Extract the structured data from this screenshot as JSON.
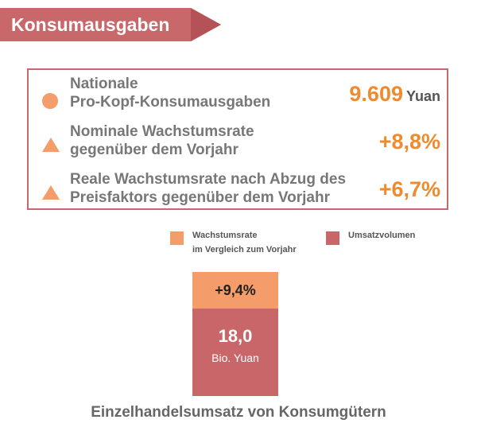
{
  "header": {
    "title": "Konsumausgaben"
  },
  "stats": [
    {
      "icon": "circle-icon",
      "label_line1": "Nationale",
      "label_line2": "Pro-Kopf-Konsumausgaben",
      "value": "9.609",
      "unit": "Yuan"
    },
    {
      "icon": "triangle-icon",
      "label_line1": "Nominale Wachstumsrate",
      "label_line2": "gegenüber dem Vorjahr",
      "value": "+8,8%",
      "unit": ""
    },
    {
      "icon": "triangle-icon",
      "label_line1": "Reale Wachstumsrate nach Abzug des",
      "label_line2": "Preisfaktors gegenüber dem Vorjahr",
      "value": "+6,7%",
      "unit": ""
    }
  ],
  "legend": [
    {
      "line1": "Wachstumsrate",
      "line2": "im Vergleich zum Vorjahr",
      "color": "#f59d6a"
    },
    {
      "line1": "Umsatzvolumen",
      "line2": "",
      "color": "#c8666a"
    }
  ],
  "bar": {
    "growth_label": "+9,4%",
    "value": "18,0",
    "unit": "Bio. Yuan",
    "growth_color": "#f59d6a",
    "volume_color": "#c8666a"
  },
  "caption": "Einzelhandelsumsatz von Konsumgütern",
  "colors": {
    "accent": "#c9686a",
    "highlight": "#ef8a2e"
  }
}
